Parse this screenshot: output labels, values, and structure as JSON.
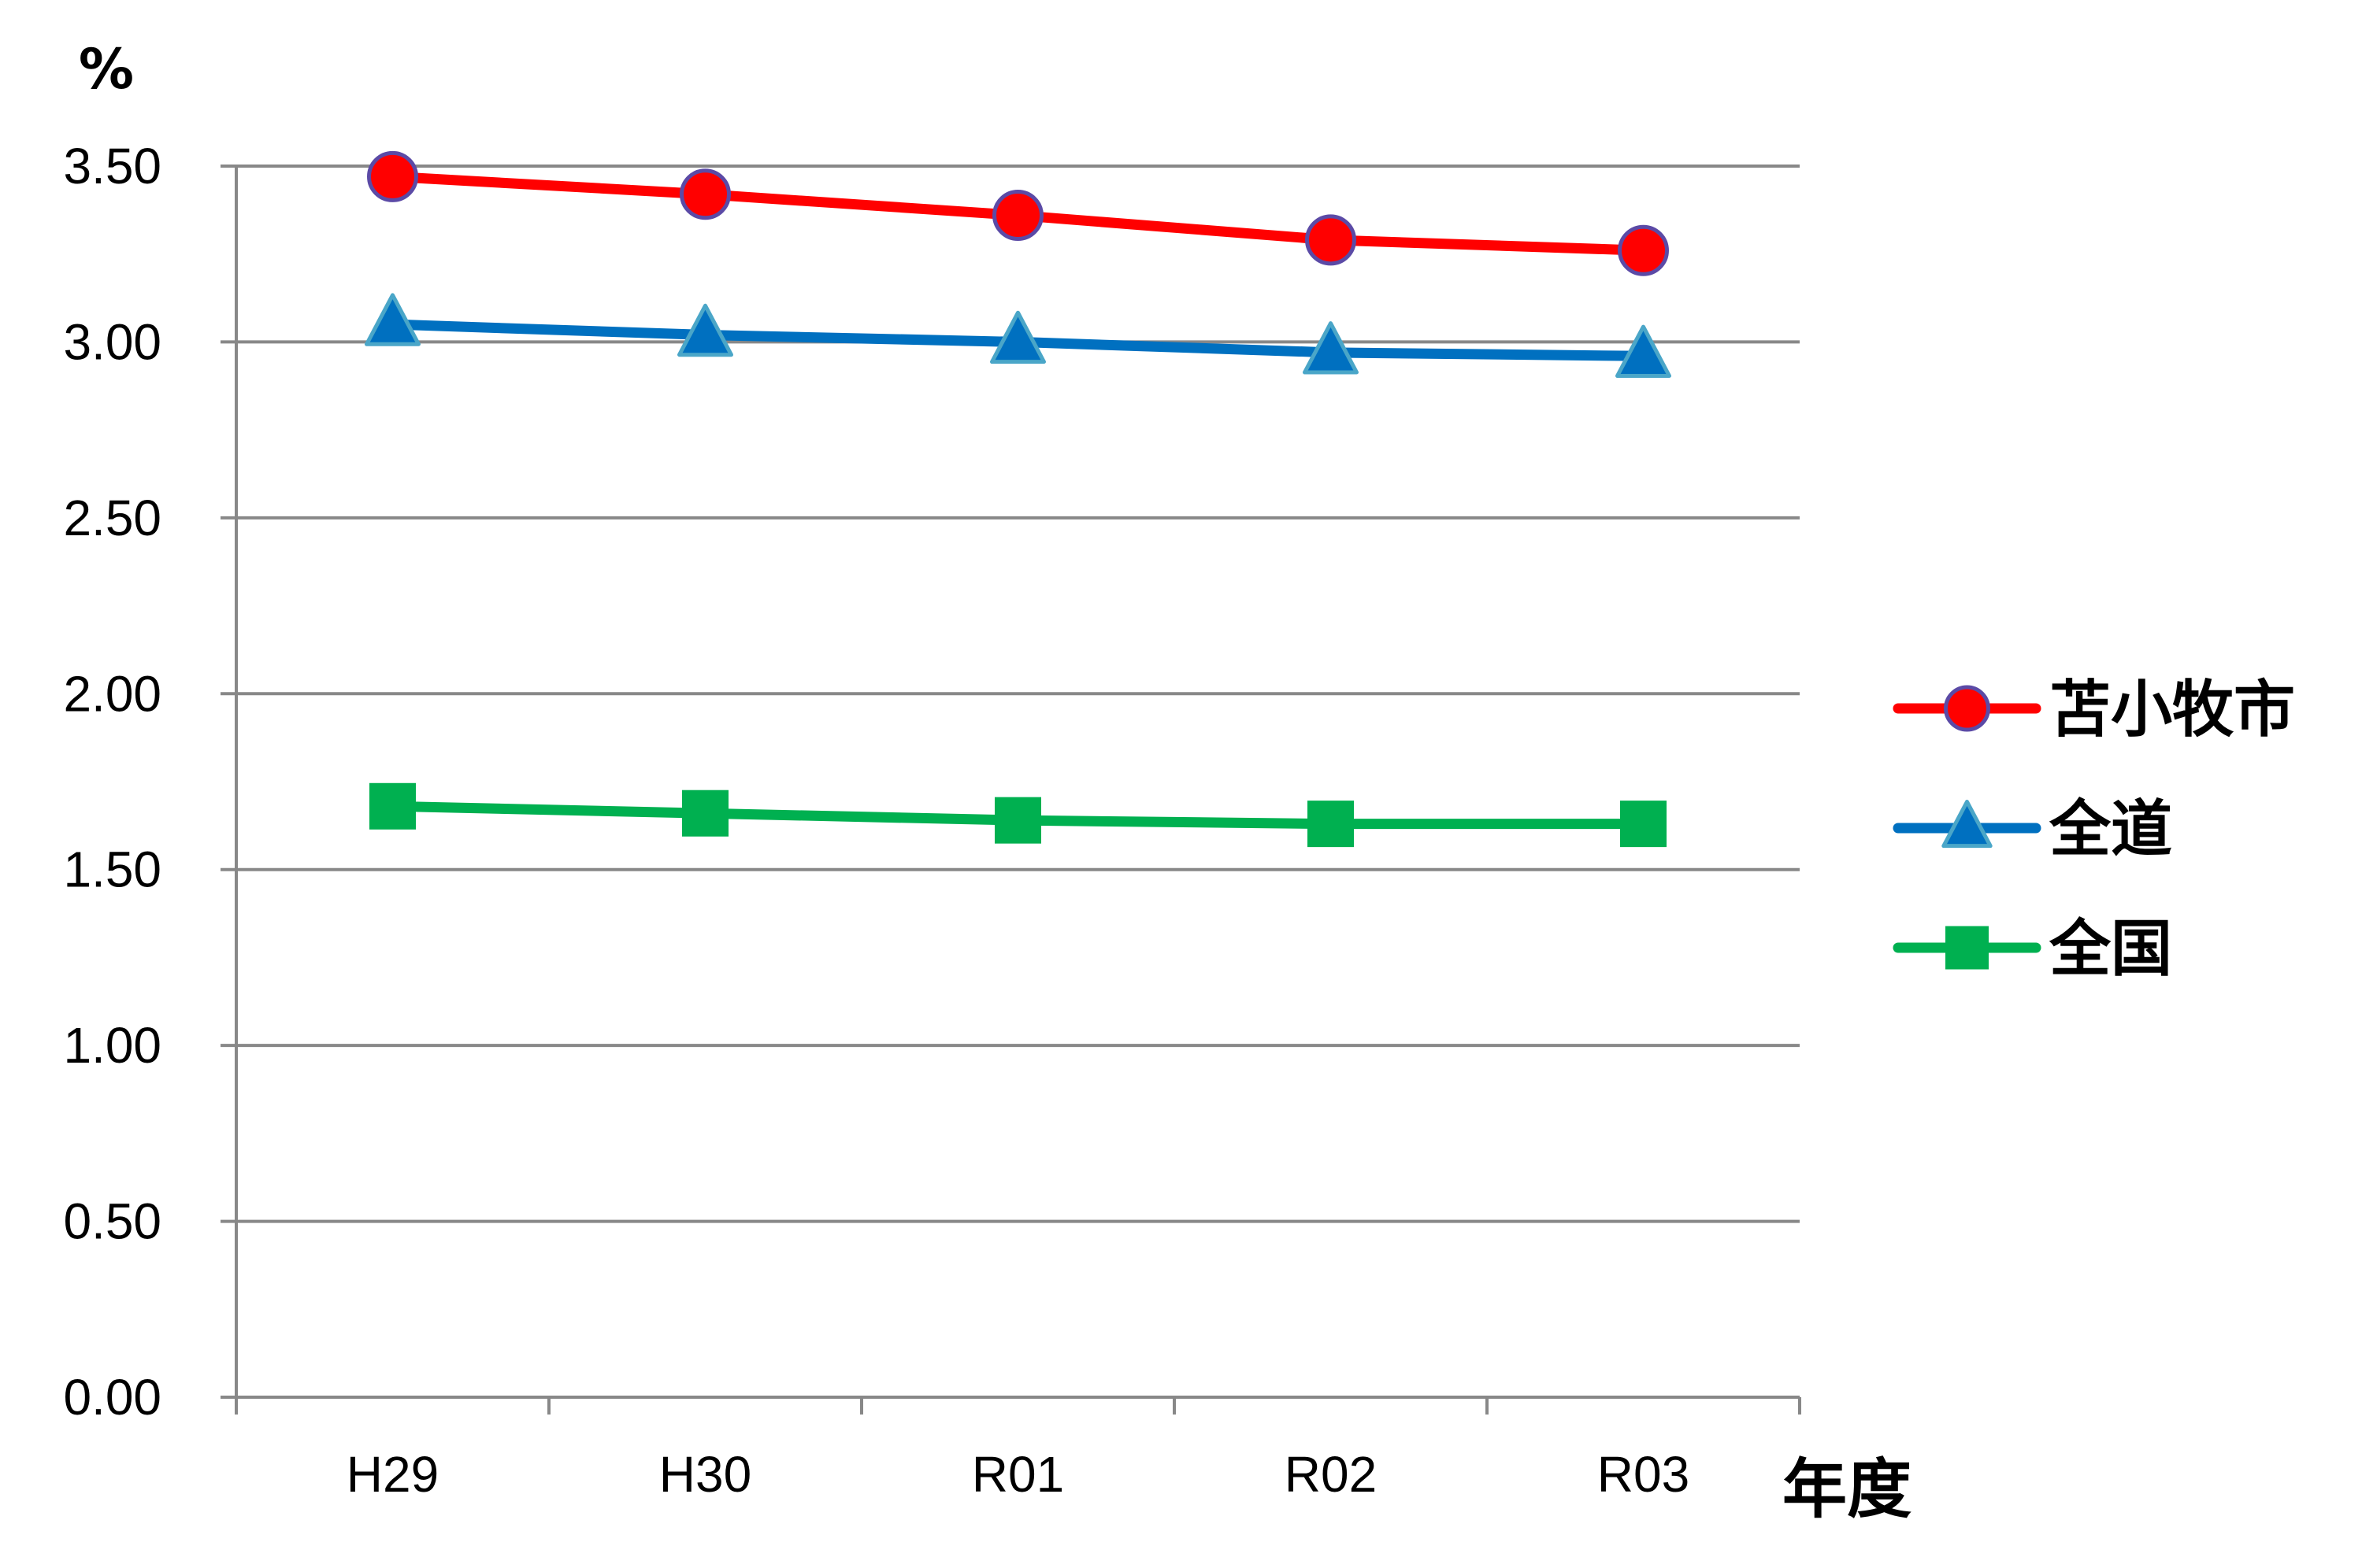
{
  "chart_data": {
    "type": "line",
    "categories": [
      "H29",
      "H30",
      "R01",
      "R02",
      "R03"
    ],
    "series": [
      {
        "name": "苫小牧市",
        "values": [
          3.47,
          3.42,
          3.36,
          3.29,
          3.26
        ],
        "color": "#ff0000",
        "marker": "circle",
        "marker_fill": "#ff0000",
        "marker_stroke": "#5b4aa6"
      },
      {
        "name": "全道",
        "values": [
          3.05,
          3.02,
          3.0,
          2.97,
          2.96
        ],
        "color": "#0070c0",
        "marker": "triangle",
        "marker_fill": "#0070c0",
        "marker_stroke": "#4aa6c8"
      },
      {
        "name": "全国",
        "values": [
          1.68,
          1.66,
          1.64,
          1.63,
          1.63
        ],
        "color": "#00b050",
        "marker": "square",
        "marker_fill": "#00b050",
        "marker_stroke": "#00b050"
      }
    ],
    "ylabel": "%",
    "xlabel": "年度",
    "ylim": [
      0,
      3.5
    ],
    "yticks": [
      "0.00",
      "0.50",
      "1.00",
      "1.50",
      "2.00",
      "2.50",
      "3.00",
      "3.50"
    ],
    "grid": true,
    "legend": "right"
  }
}
